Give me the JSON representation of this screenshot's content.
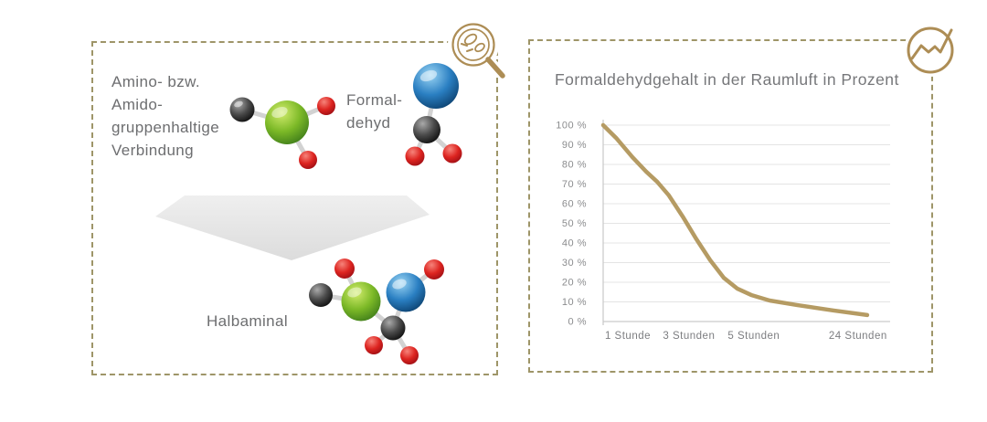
{
  "colors": {
    "accent_gold": "#ad8d55",
    "panel_border": "#9e9568",
    "line": "#b59b63",
    "text_gray": "#6d6e70",
    "grid": "#e4e4e4",
    "axis": "#c9c9c9"
  },
  "left_panel": {
    "reactant_lines": [
      "Amino- bzw.",
      "Amido-",
      "gruppenhaltige",
      "Verbindung"
    ],
    "formaldehyde_lines": [
      "Formal-",
      "dehyd"
    ],
    "product_label": "Halbaminal",
    "icon": "magnifier-molecules-icon"
  },
  "right_panel": {
    "title": "Formaldehydgehalt in der Raumluft in Prozent",
    "icon": "trend-chart-icon"
  },
  "chart_data": {
    "type": "line",
    "title": "Formaldehydgehalt in der Raumluft in Prozent",
    "xlabel": "",
    "ylabel": "",
    "ylim": [
      0,
      100
    ],
    "grid": true,
    "legend": false,
    "line_color": "#b59b63",
    "start_value": 100,
    "x_ticks": [
      {
        "label": "1 Stunde",
        "x": 0.086,
        "value": 85
      },
      {
        "label": "3 Stunden",
        "x": 0.299,
        "value": 48
      },
      {
        "label": "5 Stunden",
        "x": 0.525,
        "value": 14
      },
      {
        "label": "24 Stunden",
        "x": 0.888,
        "value": 4
      }
    ],
    "y_ticks": [
      {
        "label": "100 %",
        "value": 100
      },
      {
        "label": "90 %",
        "value": 90
      },
      {
        "label": "80 %",
        "value": 80
      },
      {
        "label": "70 %",
        "value": 70
      },
      {
        "label": "60 %",
        "value": 60
      },
      {
        "label": "50 %",
        "value": 50
      },
      {
        "label": "40 %",
        "value": 40
      },
      {
        "label": "30 %",
        "value": 30
      },
      {
        "label": "20 %",
        "value": 20
      },
      {
        "label": "10 %",
        "value": 10
      },
      {
        "label": "0 %",
        "value": 0
      }
    ],
    "curve": [
      [
        0.0,
        100
      ],
      [
        0.045,
        93.5
      ],
      [
        0.102,
        83.7
      ],
      [
        0.15,
        76.3
      ],
      [
        0.188,
        71.2
      ],
      [
        0.229,
        64.2
      ],
      [
        0.277,
        53.5
      ],
      [
        0.325,
        41.9
      ],
      [
        0.373,
        31.2
      ],
      [
        0.42,
        22.3
      ],
      [
        0.468,
        16.7
      ],
      [
        0.516,
        13.5
      ],
      [
        0.58,
        10.7
      ],
      [
        0.675,
        8.4
      ],
      [
        0.803,
        5.6
      ],
      [
        0.92,
        3.3
      ]
    ]
  }
}
